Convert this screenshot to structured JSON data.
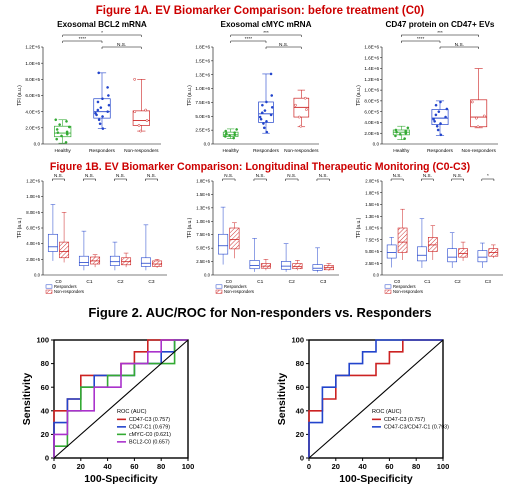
{
  "headings": {
    "fig1a": "Figure 1A. EV Biomarker Comparison: before treatment (C0)",
    "fig1b": "Figure 1B. EV Biomarker Comparison: Longitudinal Therapeutic Monitoring (C0-C3)",
    "fig2": "Figure 2. AUC/ROC for Non-responders vs. Responders"
  },
  "colors": {
    "heading": "#cc0000",
    "healthy": "#33aa33",
    "responders": "#2244cc",
    "nonresponders": "#cc2222",
    "purple": "#aa33cc",
    "reference": "#000000"
  },
  "chart_data": [
    {
      "type": "box",
      "title": "Exosomal BCL2 mRNA",
      "ylabel": "TFI (a.u.)",
      "ylim": [
        0,
        1200000
      ],
      "yticks": [
        "0.0",
        "2.0E+5",
        "4.0E+5",
        "6.0E+5",
        "8.0E+5",
        "1.0E+6",
        "1.2E+6"
      ],
      "categories": [
        "Healthy",
        "Responders",
        "Non-responders"
      ],
      "boxes": [
        {
          "q1": 90000,
          "median": 135000,
          "q3": 220000,
          "min": 10000,
          "max": 300000
        },
        {
          "q1": 320000,
          "median": 400000,
          "q3": 560000,
          "min": 190000,
          "max": 880000
        },
        {
          "q1": 230000,
          "median": 290000,
          "q3": 410000,
          "min": 160000,
          "max": 800000
        }
      ],
      "points": [
        [
          20000,
          60000,
          100000,
          120000,
          140000,
          150000,
          180000,
          210000,
          240000,
          280000,
          300000
        ],
        [
          190000,
          250000,
          300000,
          340000,
          360000,
          380000,
          400000,
          420000,
          450000,
          480000,
          520000,
          560000,
          600000,
          700000,
          880000
        ],
        [
          160000,
          230000,
          290000,
          400000,
          420000,
          800000
        ]
      ],
      "brackets": [
        {
          "from": 0,
          "to": 2,
          "label": "*"
        },
        {
          "from": 0,
          "to": 1,
          "label": "****"
        },
        {
          "from": 1,
          "to": 2,
          "label": "N.S."
        }
      ]
    },
    {
      "type": "box",
      "title": "Exosomal cMYC mRNA",
      "ylabel": "TFI (a.u.)",
      "ylim": [
        0,
        1800000
      ],
      "yticks": [
        "0.0",
        "2.5E+5",
        "5.0E+5",
        "7.5E+5",
        "1.0E+6",
        "1.3E+6",
        "1.5E+6",
        "1.8E+6"
      ],
      "categories": [
        "Healthy",
        "Responders",
        "Non-responders"
      ],
      "boxes": [
        {
          "q1": 140000,
          "median": 170000,
          "q3": 220000,
          "min": 100000,
          "max": 280000
        },
        {
          "q1": 400000,
          "median": 560000,
          "q3": 780000,
          "min": 200000,
          "max": 1300000
        },
        {
          "q1": 500000,
          "median": 680000,
          "q3": 850000,
          "min": 320000,
          "max": 1000000
        }
      ],
      "points": [
        [
          110000,
          140000,
          160000,
          170000,
          190000,
          210000,
          240000,
          270000
        ],
        [
          220000,
          300000,
          380000,
          420000,
          460000,
          500000,
          540000,
          580000,
          620000,
          680000,
          720000,
          780000,
          900000,
          1300000
        ],
        [
          330000,
          500000,
          640000,
          720000,
          850000
        ]
      ],
      "brackets": [
        {
          "from": 0,
          "to": 2,
          "label": "***"
        },
        {
          "from": 0,
          "to": 1,
          "label": "****"
        },
        {
          "from": 1,
          "to": 2,
          "label": "N.S."
        }
      ]
    },
    {
      "type": "box",
      "title": "CD47 protein on CD47+ EVs",
      "ylabel": "TFI (a.u.)",
      "ylim": [
        0,
        1800000
      ],
      "yticks": [
        "0.0",
        "2.0E+5",
        "4.0E+5",
        "6.0E+5",
        "8.0E+5",
        "1.0E+6",
        "1.2E+6",
        "1.4E+6",
        "1.6E+6",
        "1.8E+6"
      ],
      "categories": [
        "Healthy",
        "Responders",
        "Non-responders"
      ],
      "boxes": [
        {
          "q1": 170000,
          "median": 220000,
          "q3": 260000,
          "min": 80000,
          "max": 330000
        },
        {
          "q1": 360000,
          "median": 480000,
          "q3": 640000,
          "min": 160000,
          "max": 800000
        },
        {
          "q1": 320000,
          "median": 500000,
          "q3": 820000,
          "min": 300000,
          "max": 1400000
        }
      ],
      "points": [
        [
          100000,
          150000,
          180000,
          200000,
          220000,
          240000,
          260000,
          300000
        ],
        [
          170000,
          260000,
          330000,
          380000,
          420000,
          460000,
          500000,
          540000,
          600000,
          650000,
          720000,
          780000
        ],
        [
          320000,
          480000,
          520000,
          780000
        ]
      ],
      "brackets": [
        {
          "from": 0,
          "to": 2,
          "label": "***"
        },
        {
          "from": 0,
          "to": 1,
          "label": "****"
        },
        {
          "from": 1,
          "to": 2,
          "label": "N.S."
        }
      ]
    },
    {
      "type": "box",
      "ylabel": "TFI (a.u.)",
      "ylim": [
        0,
        1200000
      ],
      "yticks": [
        "0.0",
        "2.0E+5",
        "4.0E+5",
        "6.0E+5",
        "8.0E+5",
        "1.0E+6",
        "1.2E+6"
      ],
      "categories": [
        "C0",
        "C1",
        "C2",
        "C3"
      ],
      "legend": [
        "Responders",
        "Non-responders"
      ],
      "significance": [
        "N.S.",
        "N.S.",
        "N.S.",
        "N.S."
      ],
      "series": [
        {
          "name": "Responders",
          "boxes": [
            {
              "q1": 300000,
              "median": 360000,
              "q3": 520000,
              "min": 180000,
              "max": 900000
            },
            {
              "q1": 120000,
              "median": 160000,
              "q3": 240000,
              "min": 60000,
              "max": 560000
            },
            {
              "q1": 120000,
              "median": 170000,
              "q3": 240000,
              "min": 60000,
              "max": 420000
            },
            {
              "q1": 110000,
              "median": 150000,
              "q3": 220000,
              "min": 60000,
              "max": 640000
            }
          ]
        },
        {
          "name": "Non-responders",
          "boxes": [
            {
              "q1": 220000,
              "median": 300000,
              "q3": 420000,
              "min": 160000,
              "max": 800000
            },
            {
              "q1": 140000,
              "median": 180000,
              "q3": 230000,
              "min": 100000,
              "max": 260000
            },
            {
              "q1": 130000,
              "median": 170000,
              "q3": 220000,
              "min": 100000,
              "max": 280000
            },
            {
              "q1": 110000,
              "median": 140000,
              "q3": 180000,
              "min": 90000,
              "max": 200000
            }
          ]
        }
      ]
    },
    {
      "type": "box",
      "ylabel": "TFI (a.u.)",
      "ylim": [
        0,
        1800000
      ],
      "yticks": [
        "0.0",
        "2.5E+5",
        "5.0E+5",
        "7.5E+5",
        "1.0E+6",
        "1.3E+6",
        "1.5E+6",
        "1.8E+6"
      ],
      "categories": [
        "C0",
        "C1",
        "C2",
        "C3"
      ],
      "legend": [
        "Responders",
        "Non-responders"
      ],
      "significance": [
        "N.S.",
        "N.S.",
        "N.S.",
        "N.S."
      ],
      "series": [
        {
          "name": "Responders",
          "boxes": [
            {
              "q1": 400000,
              "median": 560000,
              "q3": 780000,
              "min": 200000,
              "max": 1300000
            },
            {
              "q1": 120000,
              "median": 180000,
              "q3": 280000,
              "min": 60000,
              "max": 700000
            },
            {
              "q1": 110000,
              "median": 170000,
              "q3": 260000,
              "min": 60000,
              "max": 600000
            },
            {
              "q1": 90000,
              "median": 130000,
              "q3": 200000,
              "min": 50000,
              "max": 520000
            }
          ]
        },
        {
          "name": "Non-responders",
          "boxes": [
            {
              "q1": 500000,
              "median": 680000,
              "q3": 900000,
              "min": 320000,
              "max": 1000000
            },
            {
              "q1": 130000,
              "median": 170000,
              "q3": 220000,
              "min": 90000,
              "max": 300000
            },
            {
              "q1": 120000,
              "median": 160000,
              "q3": 220000,
              "min": 90000,
              "max": 280000
            },
            {
              "q1": 100000,
              "median": 140000,
              "q3": 180000,
              "min": 80000,
              "max": 220000
            }
          ]
        }
      ]
    },
    {
      "type": "box",
      "ylabel": "TFI (a.u.)",
      "ylim": [
        0,
        2000000
      ],
      "yticks": [
        "0.0",
        "2.5E+5",
        "5.0E+5",
        "7.5E+5",
        "1.0E+6",
        "1.3E+6",
        "1.5E+6",
        "1.8E+6",
        "2.0E+6"
      ],
      "categories": [
        "C0",
        "C1",
        "C2",
        "C3"
      ],
      "legend": [
        "Responders",
        "Non-responders"
      ],
      "significance": [
        "N.S.",
        "N.S.",
        "N.S.",
        "*"
      ],
      "series": [
        {
          "name": "Responders",
          "boxes": [
            {
              "q1": 360000,
              "median": 480000,
              "q3": 640000,
              "min": 160000,
              "max": 800000
            },
            {
              "q1": 300000,
              "median": 420000,
              "q3": 600000,
              "min": 150000,
              "max": 1200000
            },
            {
              "q1": 280000,
              "median": 380000,
              "q3": 560000,
              "min": 150000,
              "max": 900000
            },
            {
              "q1": 280000,
              "median": 380000,
              "q3": 520000,
              "min": 150000,
              "max": 680000
            }
          ]
        },
        {
          "name": "Non-responders",
          "boxes": [
            {
              "q1": 480000,
              "median": 700000,
              "q3": 1000000,
              "min": 320000,
              "max": 1400000
            },
            {
              "q1": 500000,
              "median": 640000,
              "q3": 800000,
              "min": 320000,
              "max": 1050000
            },
            {
              "q1": 380000,
              "median": 460000,
              "q3": 560000,
              "min": 300000,
              "max": 700000
            },
            {
              "q1": 400000,
              "median": 480000,
              "q3": 560000,
              "min": 360000,
              "max": 640000
            }
          ]
        }
      ]
    },
    {
      "type": "line",
      "step": true,
      "xlabel": "100-Specificity",
      "ylabel": "Sensitivity",
      "xlim": [
        0,
        100
      ],
      "ylim": [
        0,
        100
      ],
      "xticks": [
        "0",
        "20",
        "40",
        "60",
        "80",
        "100"
      ],
      "yticks": [
        "0",
        "20",
        "40",
        "60",
        "80",
        "100"
      ],
      "legend_title": "ROC (AUC)",
      "legend_position": "bottom-right",
      "series": [
        {
          "name": "CD47-C3 (0.757)",
          "color": "#cc2222",
          "x": [
            0,
            0,
            10,
            10,
            20,
            20,
            50,
            50,
            60,
            60,
            70,
            70,
            100
          ],
          "y": [
            0,
            40,
            40,
            50,
            50,
            70,
            70,
            80,
            80,
            90,
            90,
            100,
            100
          ]
        },
        {
          "name": "CD47-C1 (0.679)",
          "color": "#2244cc",
          "x": [
            0,
            0,
            10,
            10,
            20,
            20,
            30,
            30,
            60,
            60,
            80,
            80,
            90,
            90,
            100
          ],
          "y": [
            0,
            30,
            30,
            50,
            50,
            60,
            60,
            70,
            70,
            80,
            80,
            90,
            90,
            100,
            100
          ]
        },
        {
          "name": "cMYC-C0 (0.621)",
          "color": "#33aa33",
          "x": [
            0,
            0,
            10,
            10,
            20,
            20,
            40,
            40,
            60,
            60,
            90,
            90,
            100
          ],
          "y": [
            0,
            10,
            10,
            40,
            40,
            60,
            60,
            70,
            70,
            80,
            80,
            100,
            100
          ]
        },
        {
          "name": "BCL2-C0 (0.657)",
          "color": "#aa33cc",
          "x": [
            0,
            0,
            10,
            10,
            30,
            30,
            50,
            50,
            70,
            70,
            80,
            80,
            100
          ],
          "y": [
            0,
            20,
            20,
            40,
            40,
            60,
            60,
            80,
            80,
            90,
            90,
            100,
            100
          ]
        },
        {
          "name": "",
          "color": "#000000",
          "reference": true,
          "x": [
            0,
            100
          ],
          "y": [
            0,
            100
          ]
        }
      ]
    },
    {
      "type": "line",
      "step": true,
      "xlabel": "100-Specificity",
      "ylabel": "Sensitivity",
      "xlim": [
        0,
        100
      ],
      "ylim": [
        0,
        100
      ],
      "xticks": [
        "0",
        "20",
        "40",
        "60",
        "80",
        "100"
      ],
      "yticks": [
        "0",
        "20",
        "40",
        "60",
        "80",
        "100"
      ],
      "legend_title": "ROC (AUC)",
      "legend_position": "bottom-right",
      "series": [
        {
          "name": "CD47-C3 (0.757)",
          "color": "#cc2222",
          "x": [
            0,
            0,
            10,
            10,
            20,
            20,
            50,
            50,
            60,
            60,
            70,
            70,
            100
          ],
          "y": [
            0,
            40,
            40,
            50,
            50,
            70,
            70,
            80,
            80,
            90,
            90,
            100,
            100
          ]
        },
        {
          "name": "CD47-C3/CD47-C1 (0.793)",
          "color": "#2244cc",
          "x": [
            0,
            0,
            10,
            10,
            20,
            20,
            30,
            30,
            40,
            40,
            50,
            50,
            100
          ],
          "y": [
            0,
            30,
            30,
            60,
            60,
            70,
            70,
            80,
            80,
            90,
            90,
            100,
            100
          ]
        },
        {
          "name": "",
          "color": "#000000",
          "reference": true,
          "x": [
            0,
            100
          ],
          "y": [
            0,
            100
          ]
        }
      ]
    }
  ]
}
